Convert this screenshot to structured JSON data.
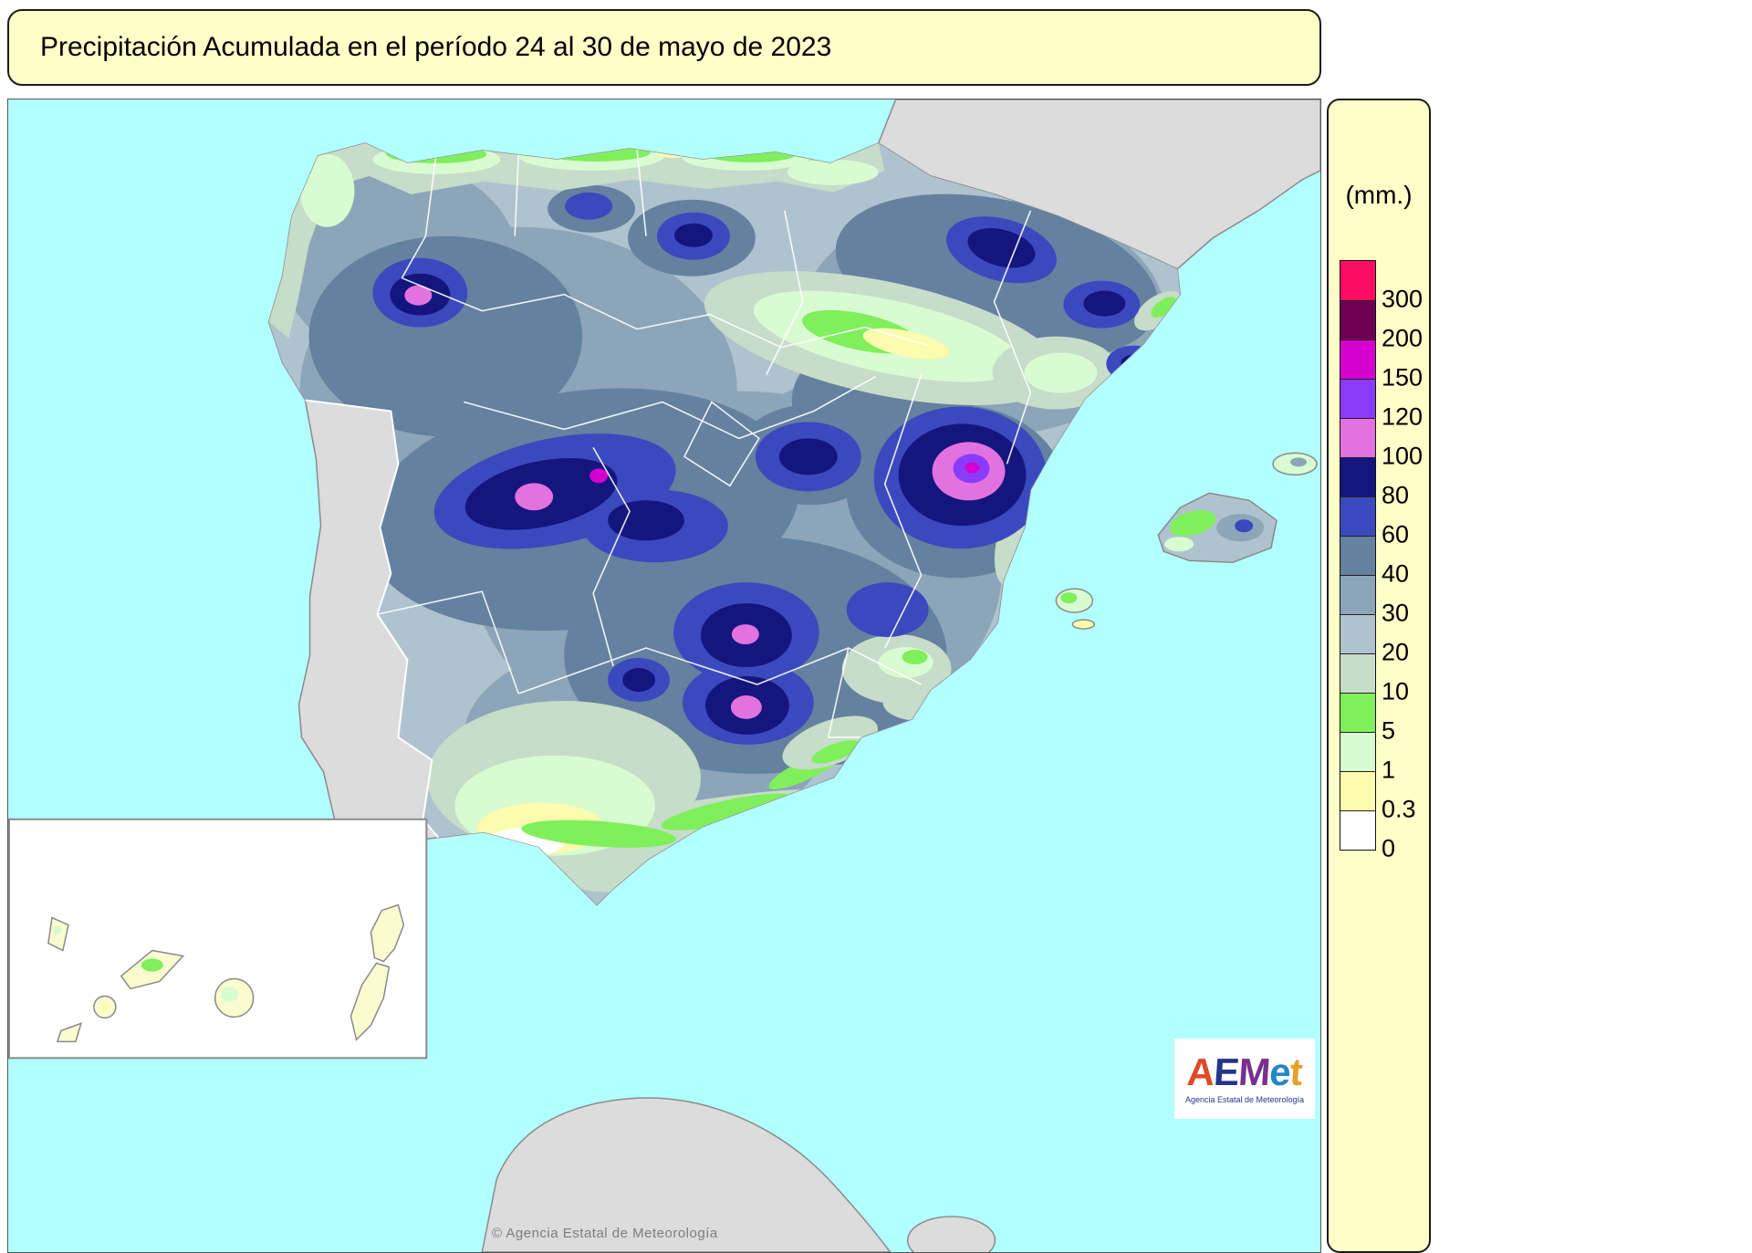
{
  "title": "Precipitación Acumulada en el período 24 al 30 de mayo de 2023",
  "legend": {
    "unit_label": "(mm.)",
    "scale": [
      {
        "value": "300",
        "color": "#FB0D66"
      },
      {
        "value": "200",
        "color": "#6E0053"
      },
      {
        "value": "150",
        "color": "#D400CE"
      },
      {
        "value": "120",
        "color": "#8A3CFA"
      },
      {
        "value": "100",
        "color": "#E272DF"
      },
      {
        "value": "80",
        "color": "#15157E"
      },
      {
        "value": "60",
        "color": "#3A49BE"
      },
      {
        "value": "40",
        "color": "#64819F"
      },
      {
        "value": "30",
        "color": "#8CA5B8"
      },
      {
        "value": "20",
        "color": "#AFC3CE"
      },
      {
        "value": "10",
        "color": "#C7DCC9"
      },
      {
        "value": "5",
        "color": "#7FEF5C"
      },
      {
        "value": "1",
        "color": "#D9FBD2"
      },
      {
        "value": "0.3",
        "color": "#FCFCAE"
      },
      {
        "value": "0",
        "color": "#FFFFFF"
      }
    ]
  },
  "map": {
    "copyright": "© Agencia Estatal de Meteorología",
    "colors": {
      "sea": "#B2FFFF",
      "land": "#DCDCDC",
      "panel": "#FFFFC8",
      "coast": "#8A8A8A"
    }
  },
  "logo": {
    "letters": [
      {
        "ch": "A",
        "color": "#E04A2A"
      },
      {
        "ch": "E",
        "color": "#27348B"
      },
      {
        "ch": "M",
        "color": "#7A2F8E"
      },
      {
        "ch": "e",
        "color": "#2386C8"
      },
      {
        "ch": "t",
        "color": "#E8A02B"
      }
    ],
    "subtitle": "Agencia Estatal de Meteorología"
  }
}
